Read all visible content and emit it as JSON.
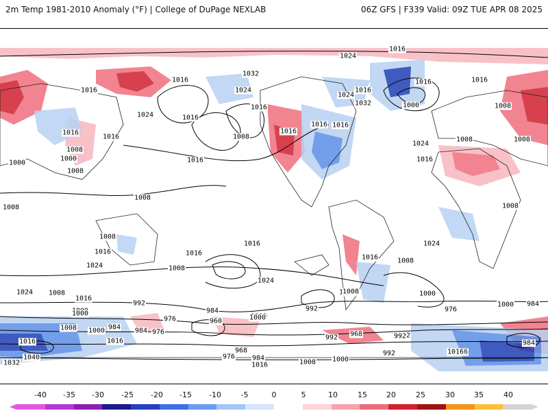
{
  "header": {
    "left_text": "2m Temp 1981-2010 Anomaly (°F) | College of DuPage NEXLAB",
    "right_text": "06Z GFS | F339 Valid: 09Z TUE APR 08 2025"
  },
  "colors": {
    "background": "#ffffff",
    "contour_line": "#000000",
    "land_outline": "#222222",
    "warm_light": "#f7b7bf",
    "warm_medium": "#ef6f7d",
    "warm_strong": "#d1202f",
    "cold_light": "#b7d1f2",
    "cold_medium": "#5b8ee6",
    "cold_strong": "#1f3fb4"
  },
  "isobar_labels": [
    "1016",
    "1024",
    "1032",
    "1016",
    "1016",
    "1024",
    "1024",
    "1016",
    "1016",
    "1016",
    "1032",
    "1016",
    "1000",
    "1016",
    "1008",
    "1016",
    "1008",
    "1016",
    "1024",
    "1016",
    "1008",
    "1016",
    "1016",
    "1016",
    "1008",
    "1024",
    "1016",
    "1008",
    "1000",
    "1008",
    "1000",
    "1008",
    "1008",
    "1008",
    "1008",
    "1016",
    "1024",
    "1008",
    "1016",
    "1016",
    "1024",
    "1024",
    "1008",
    "1016",
    "1000",
    "992",
    "984",
    "960",
    "1000",
    "992",
    "1000",
    "976",
    "984",
    "984",
    "1000",
    "976",
    "1016",
    "1008",
    "1000",
    "992",
    "1016",
    "992",
    "1008",
    "1000",
    "984",
    "976",
    "1016",
    "968",
    "984",
    "976",
    "1016",
    "992",
    "1008",
    "1000",
    "1040",
    "1032",
    "1016",
    "1016",
    "1024",
    "1000",
    "984",
    "968",
    "1000",
    "1008",
    "992",
    "1000",
    "1008"
  ],
  "legend": {
    "ticks": [
      "-40",
      "-35",
      "-30",
      "-25",
      "-20",
      "-15",
      "-10",
      "-5",
      "0",
      "5",
      "10",
      "15",
      "20",
      "25",
      "30",
      "35",
      "40"
    ],
    "swatch_colors": [
      "#e05ae0",
      "#b33ad1",
      "#8c1fb0",
      "#1c1a8c",
      "#2a3fc0",
      "#3f6fe0",
      "#6c9bf0",
      "#a4c6f6",
      "#d6e6fb",
      "#ffffff",
      "#fbd6da",
      "#f4a3ac",
      "#ea6e7c",
      "#d1202f",
      "#a01212",
      "#f7941d",
      "#f9c238",
      "#d4d4d4"
    ]
  }
}
